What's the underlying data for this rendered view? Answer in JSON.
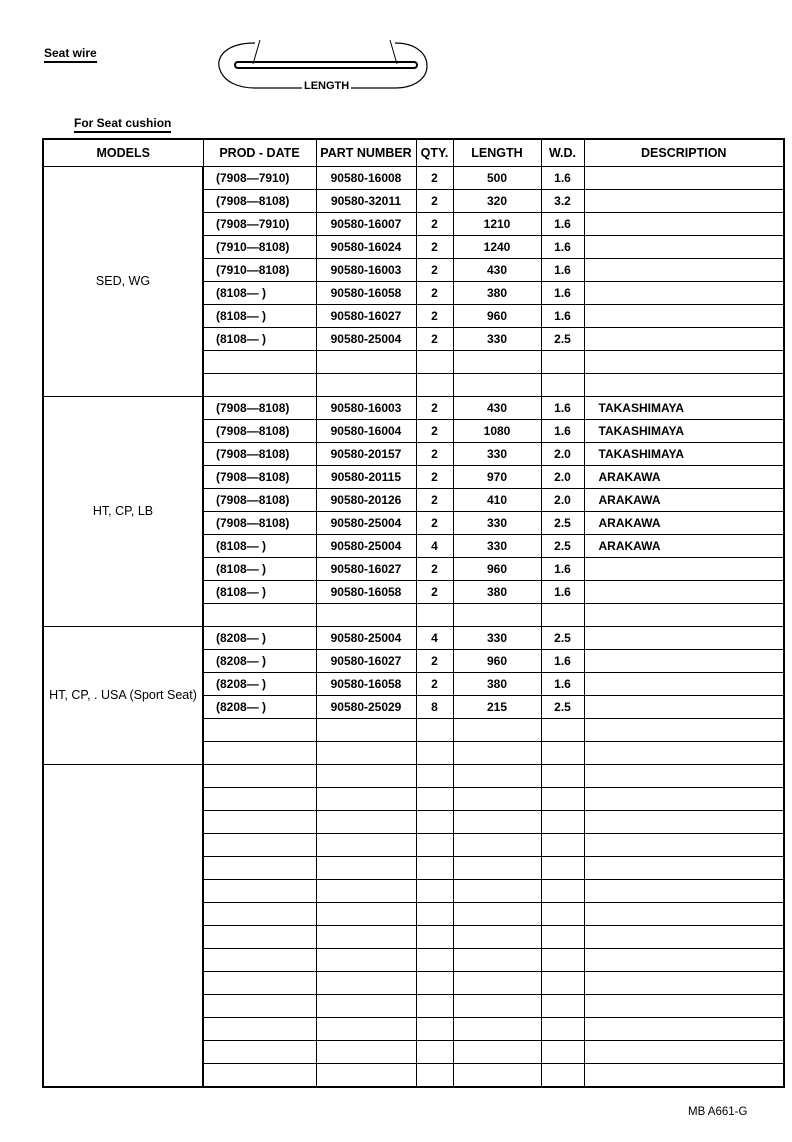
{
  "header": {
    "section_title": "Seat wire",
    "diagram_label": "LENGTH",
    "table_title": "For Seat cushion"
  },
  "table": {
    "columns": [
      "MODELS",
      "PROD - DATE",
      "PART NUMBER",
      "QTY.",
      "LENGTH",
      "W.D.",
      "DESCRIPTION"
    ],
    "groups": [
      {
        "model": "SED, WG",
        "rows": [
          [
            "(7908—7910)",
            "90580-16008",
            "2",
            "500",
            "1.6",
            ""
          ],
          [
            "(7908—8108)",
            "90580-32011",
            "2",
            "320",
            "3.2",
            ""
          ],
          [
            "(7908—7910)",
            "90580-16007",
            "2",
            "1210",
            "1.6",
            ""
          ],
          [
            "(7910—8108)",
            "90580-16024",
            "2",
            "1240",
            "1.6",
            ""
          ],
          [
            "(7910—8108)",
            "90580-16003",
            "2",
            "430",
            "1.6",
            ""
          ],
          [
            "(8108—      )",
            "90580-16058",
            "2",
            "380",
            "1.6",
            ""
          ],
          [
            "(8108—      )",
            "90580-16027",
            "2",
            "960",
            "1.6",
            ""
          ],
          [
            "(8108—      )",
            "90580-25004",
            "2",
            "330",
            "2.5",
            ""
          ]
        ]
      },
      {
        "model": "HT, CP, LB",
        "rows": [
          [
            "(7908—8108)",
            "90580-16003",
            "2",
            "430",
            "1.6",
            "TAKASHIMAYA"
          ],
          [
            "(7908—8108)",
            "90580-16004",
            "2",
            "1080",
            "1.6",
            "TAKASHIMAYA"
          ],
          [
            "(7908—8108)",
            "90580-20157",
            "2",
            "330",
            "2.0",
            "TAKASHIMAYA"
          ],
          [
            "(7908—8108)",
            "90580-20115",
            "2",
            "970",
            "2.0",
            "ARAKAWA"
          ],
          [
            "(7908—8108)",
            "90580-20126",
            "2",
            "410",
            "2.0",
            "ARAKAWA"
          ],
          [
            "(7908—8108)",
            "90580-25004",
            "2",
            "330",
            "2.5",
            "ARAKAWA"
          ],
          [
            "(8108—      )",
            "90580-25004",
            "4",
            "330",
            "2.5",
            "ARAKAWA"
          ],
          [
            "(8108—      )",
            "90580-16027",
            "2",
            "960",
            "1.6",
            ""
          ],
          [
            "(8108—      )",
            "90580-16058",
            "2",
            "380",
            "1.6",
            ""
          ]
        ]
      },
      {
        "model": "HT, CP, . USA (Sport Seat)",
        "rows": [
          [
            "(8208—      )",
            "90580-25004",
            "4",
            "330",
            "2.5",
            ""
          ],
          [
            "(8208—      )",
            "90580-16027",
            "2",
            "960",
            "1.6",
            ""
          ],
          [
            "(8208—      )",
            "90580-16058",
            "2",
            "380",
            "1.6",
            ""
          ],
          [
            "(8208—      )",
            "90580-25029",
            "8",
            "215",
            "2.5",
            ""
          ]
        ]
      },
      {
        "model": "",
        "rows": []
      }
    ]
  },
  "footer": {
    "code": "MB  A661-G"
  }
}
